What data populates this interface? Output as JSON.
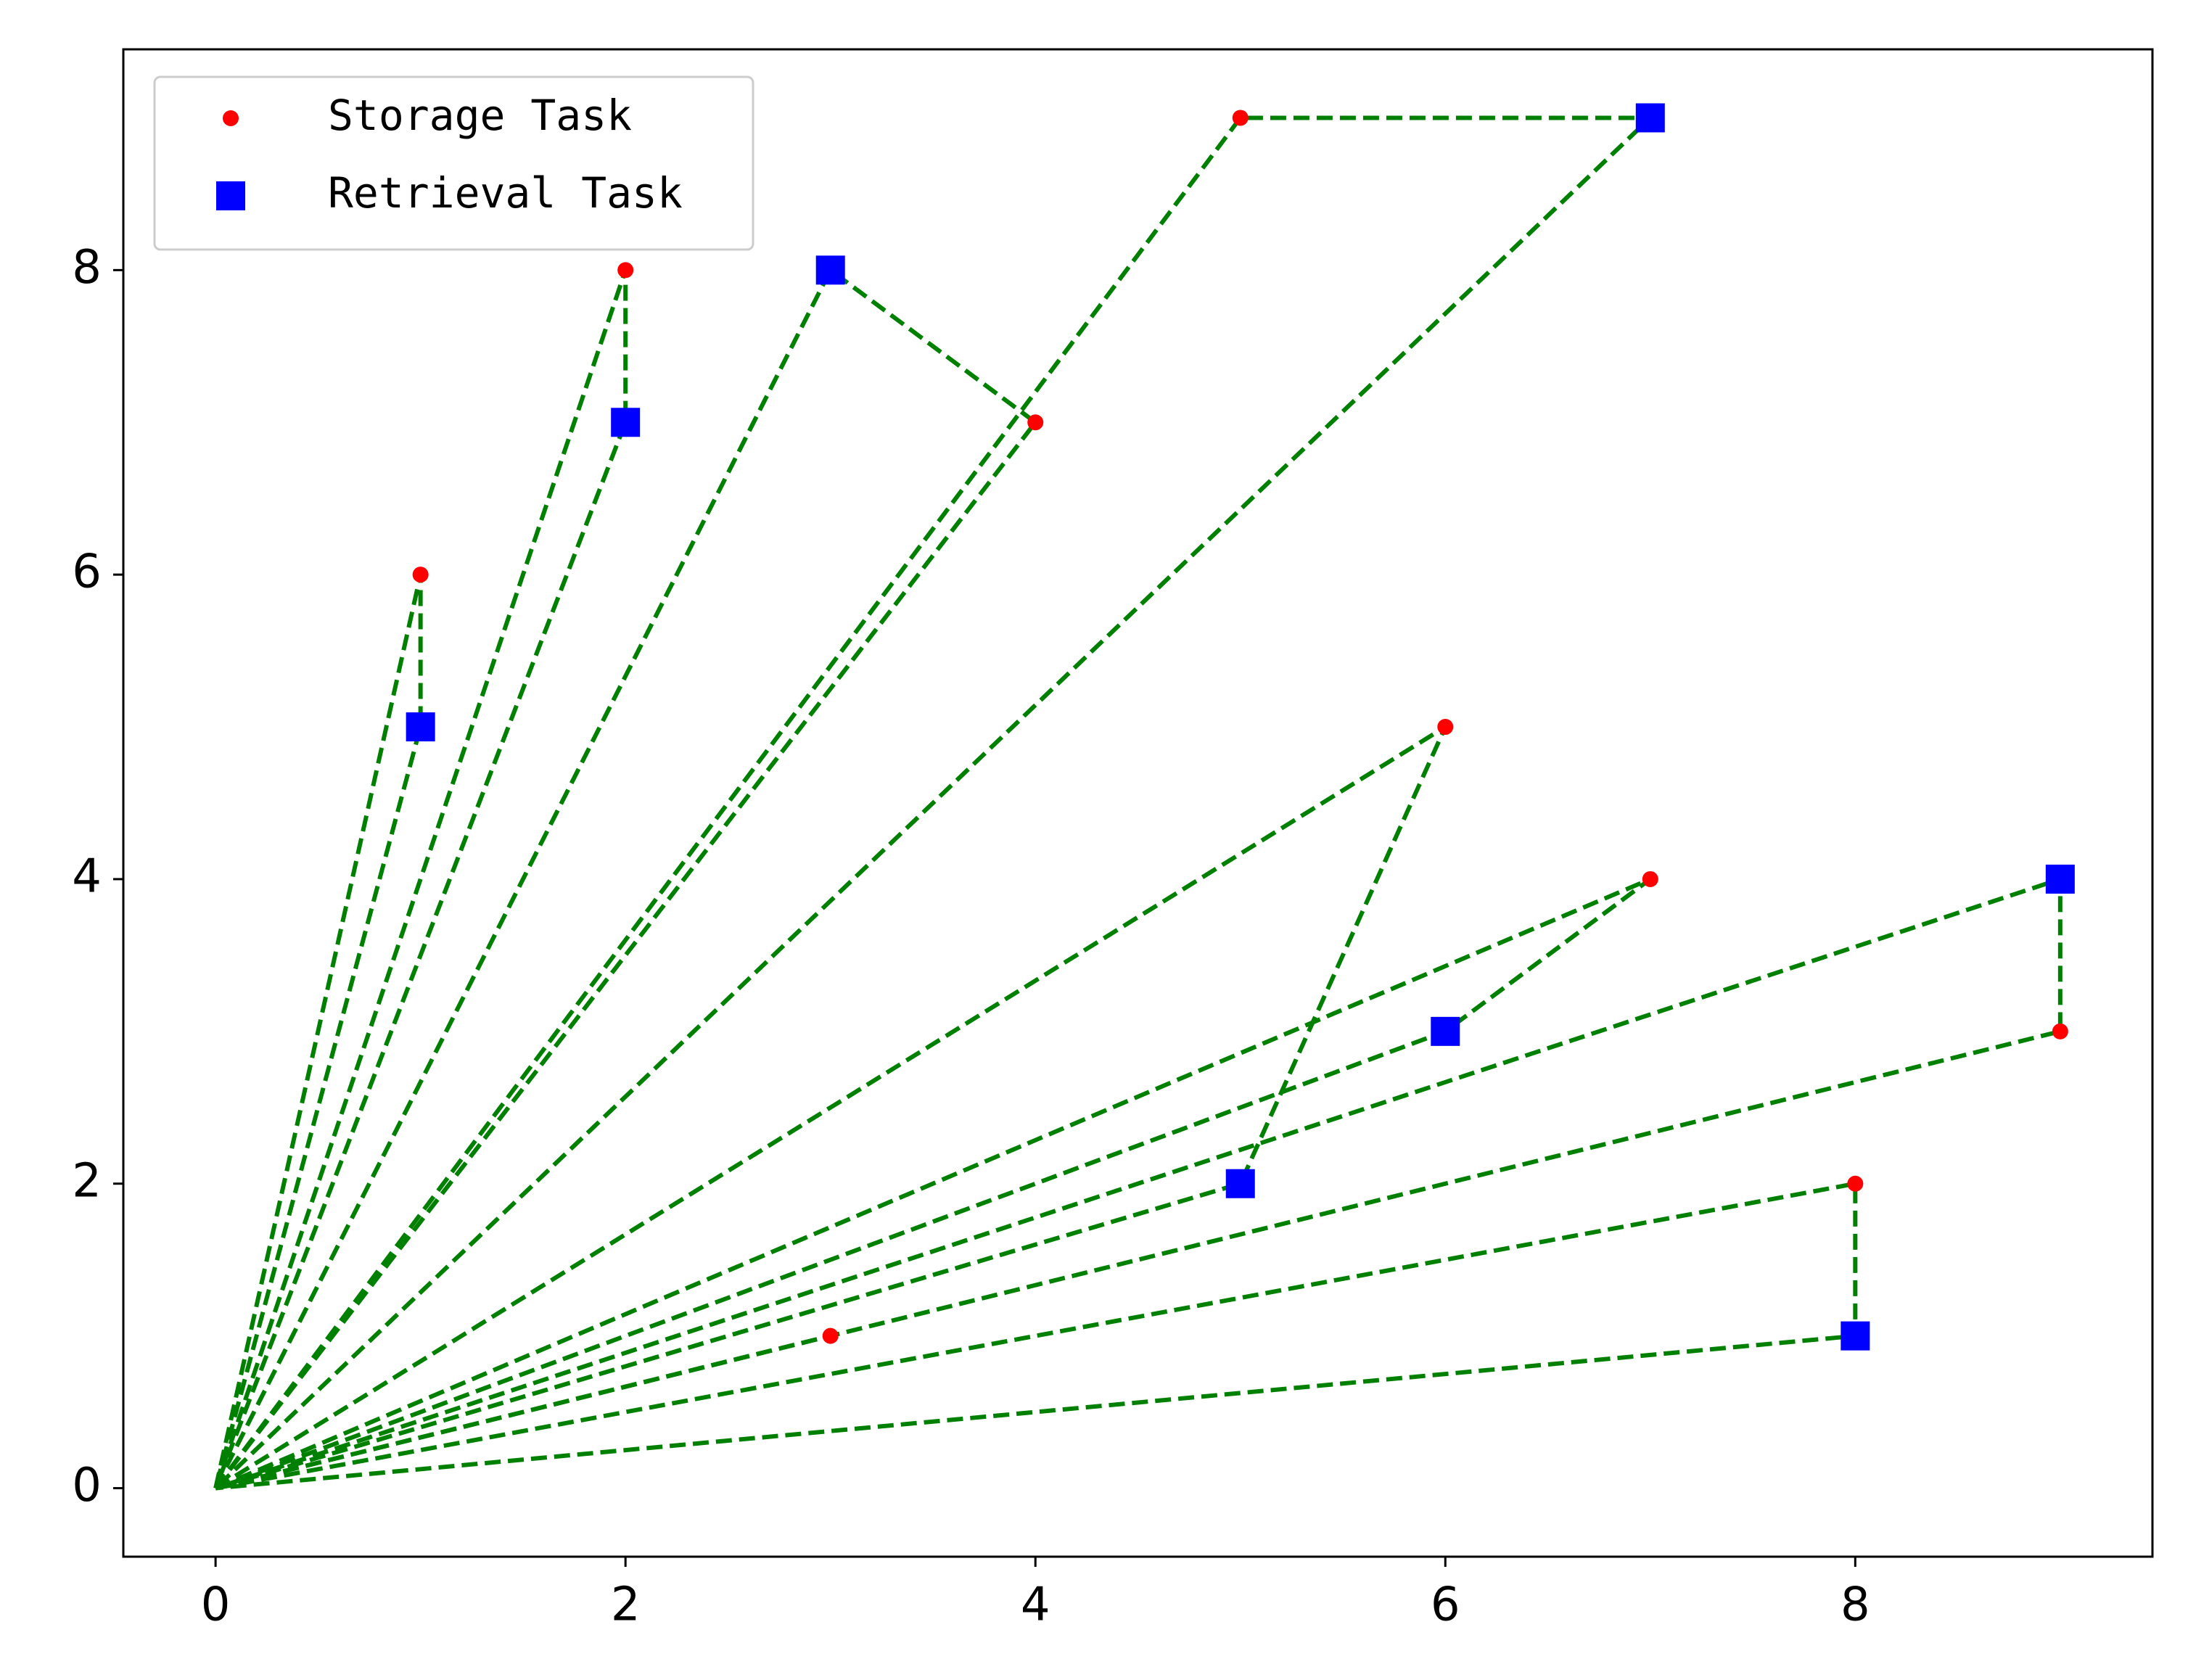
{
  "chart_data": {
    "type": "scatter",
    "xlim": [
      -0.45,
      9.45
    ],
    "ylim": [
      -0.45,
      9.45
    ],
    "xticks": [
      0,
      2,
      4,
      6,
      8
    ],
    "yticks": [
      0,
      2,
      4,
      6,
      8
    ],
    "legend": "upper left",
    "series": [
      {
        "name": "Storage Task",
        "color": "#ff0000",
        "marker": "circle",
        "x": [
          5,
          2,
          4,
          1,
          6,
          7,
          9,
          8,
          3
        ],
        "y": [
          9,
          8,
          7,
          6,
          5,
          4,
          3,
          2,
          1
        ]
      },
      {
        "name": "Retrieval Task",
        "color": "#0000ff",
        "marker": "square",
        "x": [
          7,
          3,
          2,
          1,
          9,
          6,
          5,
          8
        ],
        "y": [
          9,
          8,
          7,
          5,
          4,
          3,
          2,
          1
        ]
      }
    ],
    "routes": [
      {
        "color": "#008000",
        "x": [
          0,
          1,
          1,
          0
        ],
        "y": [
          0,
          6,
          5,
          0
        ]
      },
      {
        "color": "#008000",
        "x": [
          0,
          2,
          2,
          0
        ],
        "y": [
          0,
          8,
          7,
          0
        ]
      },
      {
        "color": "#008000",
        "x": [
          0,
          4,
          3,
          0
        ],
        "y": [
          0,
          7,
          8,
          0
        ]
      },
      {
        "color": "#008000",
        "x": [
          0,
          5,
          7,
          0
        ],
        "y": [
          0,
          9,
          9,
          0
        ]
      },
      {
        "color": "#008000",
        "x": [
          0,
          6,
          5,
          0
        ],
        "y": [
          0,
          5,
          2,
          0
        ]
      },
      {
        "color": "#008000",
        "x": [
          0,
          7,
          6,
          0
        ],
        "y": [
          0,
          4,
          3,
          0
        ]
      },
      {
        "color": "#008000",
        "x": [
          0,
          9,
          9,
          0
        ],
        "y": [
          0,
          3,
          4,
          0
        ]
      },
      {
        "color": "#008000",
        "x": [
          0,
          8,
          8,
          0
        ],
        "y": [
          0,
          2,
          1,
          0
        ]
      },
      {
        "color": "#008000",
        "x": [
          0,
          3
        ],
        "y": [
          0,
          1
        ]
      }
    ]
  }
}
